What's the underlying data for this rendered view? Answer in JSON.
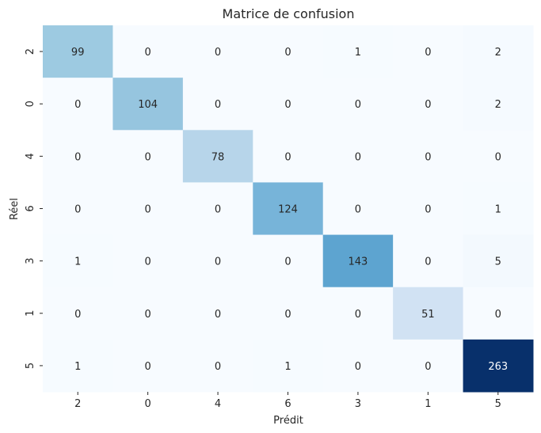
{
  "chart_data": {
    "type": "heatmap",
    "title": "Matrice de confusion",
    "xlabel": "Prédit",
    "ylabel": "Réel",
    "x_categories": [
      "2",
      "0",
      "4",
      "6",
      "3",
      "1",
      "5"
    ],
    "y_categories": [
      "2",
      "0",
      "4",
      "6",
      "3",
      "1",
      "5"
    ],
    "values": [
      [
        99,
        0,
        0,
        0,
        1,
        0,
        2
      ],
      [
        0,
        104,
        0,
        0,
        0,
        0,
        2
      ],
      [
        0,
        0,
        78,
        0,
        0,
        0,
        0
      ],
      [
        0,
        0,
        0,
        124,
        0,
        0,
        1
      ],
      [
        1,
        0,
        0,
        0,
        143,
        0,
        5
      ],
      [
        0,
        0,
        0,
        0,
        0,
        51,
        0
      ],
      [
        1,
        0,
        0,
        1,
        0,
        0,
        263
      ]
    ],
    "colormap": "Blues",
    "colorbar": false,
    "grid": false
  }
}
